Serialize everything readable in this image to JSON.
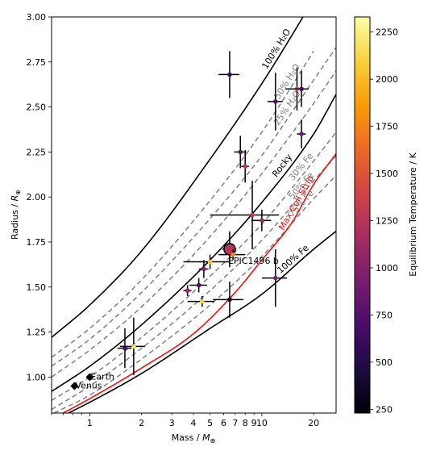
{
  "chart_data": {
    "type": "scatter",
    "xlabel": "Mass / M⊕",
    "ylabel": "Radius / R⊕",
    "x_scale": "log",
    "xlim": [
      0.6,
      27
    ],
    "ylim": [
      0.8,
      3.0
    ],
    "x_ticks": [
      1,
      2,
      3,
      4,
      5,
      6,
      7,
      8,
      9,
      10,
      20
    ],
    "x_tick_labels": [
      "1",
      "2",
      "3",
      "4",
      "5",
      "6",
      "7",
      "8",
      "9",
      "10",
      "20"
    ],
    "y_ticks": [
      1.0,
      1.25,
      1.5,
      1.75,
      2.0,
      2.25,
      2.5,
      2.75,
      3.0
    ],
    "y_tick_labels": [
      "1.00",
      "1.25",
      "1.50",
      "1.75",
      "2.00",
      "2.25",
      "2.50",
      "2.75",
      "3.00"
    ],
    "colorbar": {
      "label": "Equilibrium Temperature / K",
      "range": [
        230,
        2330
      ],
      "ticks": [
        250,
        500,
        750,
        1000,
        1250,
        1500,
        1750,
        2000,
        2250
      ],
      "tick_labels": [
        "250",
        "500",
        "750",
        "1000",
        "1250",
        "1500",
        "1750",
        "2000",
        "2250"
      ],
      "colormap": "inferno",
      "stops": [
        "#000004",
        "#1b0c41",
        "#4a0c6b",
        "#781c6d",
        "#a52c60",
        "#cf4446",
        "#ed6925",
        "#fb9b06",
        "#f7d13d",
        "#fcffa4"
      ]
    },
    "composition_curves": [
      {
        "label": "100% H₂O",
        "style": "solid",
        "color": "#000000",
        "x": [
          0.6,
          1,
          2,
          5,
          10,
          15,
          20
        ],
        "y": [
          1.22,
          1.4,
          1.7,
          2.21,
          2.63,
          2.9,
          3.1
        ]
      },
      {
        "label": "50% H₂O",
        "style": "dashed",
        "color": "#808080",
        "x": [
          0.6,
          1,
          2,
          5,
          10,
          20
        ],
        "y": [
          1.11,
          1.27,
          1.54,
          1.98,
          2.36,
          2.81
        ]
      },
      {
        "label": "25% H₂O",
        "style": "dashed",
        "color": "#808080",
        "x": [
          0.6,
          1,
          2,
          5,
          10,
          20,
          27
        ],
        "y": [
          1.06,
          1.21,
          1.47,
          1.88,
          2.23,
          2.65,
          2.83
        ]
      },
      {
        "label": "",
        "style": "dashed",
        "color": "#808080",
        "x": [
          0.6,
          1,
          2,
          5,
          10,
          20,
          27
        ],
        "y": [
          1.0,
          1.15,
          1.39,
          1.78,
          2.13,
          2.52,
          2.7
        ]
      },
      {
        "label": "Rocky",
        "style": "solid",
        "color": "#000000",
        "x": [
          0.6,
          1,
          2,
          5,
          10,
          20,
          27
        ],
        "y": [
          0.92,
          1.06,
          1.29,
          1.65,
          1.97,
          2.35,
          2.57
        ]
      },
      {
        "label": "30% Fe",
        "style": "dashed",
        "color": "#808080",
        "x": [
          0.6,
          1,
          2,
          5,
          10,
          20,
          27
        ],
        "y": [
          0.87,
          1.0,
          1.22,
          1.56,
          1.85,
          2.2,
          2.36
        ]
      },
      {
        "label": "50% Fe",
        "style": "dashed",
        "color": "#808080",
        "x": [
          0.6,
          1,
          2,
          5,
          10,
          20,
          27
        ],
        "y": [
          0.82,
          0.95,
          1.16,
          1.48,
          1.76,
          2.09,
          2.23
        ]
      },
      {
        "label": "75% Fe",
        "style": "dashed",
        "color": "#808080",
        "x": [
          0.62,
          1,
          2,
          5,
          10,
          20,
          27
        ],
        "y": [
          0.8,
          0.9,
          1.1,
          1.4,
          1.67,
          1.99,
          2.12
        ]
      },
      {
        "label": "Max Coll Strip",
        "style": "solid",
        "color": "#ee1111",
        "x": [
          0.7,
          1,
          2,
          4,
          7,
          10,
          15,
          20,
          27
        ],
        "y": [
          0.8,
          0.88,
          1.05,
          1.24,
          1.47,
          1.65,
          1.86,
          2.07,
          2.24
        ]
      },
      {
        "label": "100% Fe",
        "style": "solid",
        "color": "#000000",
        "x": [
          0.65,
          1,
          2,
          5,
          10,
          20,
          27
        ],
        "y": [
          0.77,
          0.86,
          1.02,
          1.27,
          1.46,
          1.71,
          1.81
        ]
      }
    ],
    "planets": [
      {
        "mass": 6.5,
        "mass_err": 0.9,
        "radius": 2.68,
        "radius_err": 0.13,
        "teq": 600
      },
      {
        "mass": 7.5,
        "mass_err": 0.6,
        "radius": 2.25,
        "radius_err": 0.09,
        "teq": 800
      },
      {
        "mass": 8.0,
        "mass_err": 0.4,
        "radius": 2.17,
        "radius_err": 0.09,
        "teq": 1300
      },
      {
        "mass": 12.0,
        "mass_err": 1.2,
        "radius": 2.53,
        "radius_err": 0.16,
        "teq": 700
      },
      {
        "mass": 16.0,
        "mass_err": 2.3,
        "radius": 2.6,
        "radius_err": 0.12,
        "teq": 1550
      },
      {
        "mass": 17.0,
        "mass_err": 1.7,
        "radius": 2.6,
        "radius_err": 0.1,
        "teq": 650
      },
      {
        "mass": 17.0,
        "mass_err": 1.0,
        "radius": 2.35,
        "radius_err": 0.08,
        "teq": 900
      },
      {
        "mass": 8.8,
        "mass_err": 3.8,
        "radius": 1.9,
        "radius_err": 0.19,
        "teq": 1300
      },
      {
        "mass": 10.0,
        "mass_err": 1.3,
        "radius": 1.87,
        "radius_err": 0.06,
        "teq": 1150
      },
      {
        "mass": 6.5,
        "mass_err": 0.6,
        "radius": 1.71,
        "radius_err": 0.1,
        "teq": 1250,
        "highlight": true,
        "label": "EPIC1496 b"
      },
      {
        "mass": 5.0,
        "mass_err": 1.5,
        "radius": 1.64,
        "radius_err": 0.04,
        "teq": 2000
      },
      {
        "mass": 6.8,
        "mass_err": 1.2,
        "radius": 1.68,
        "radius_err": 0.03,
        "teq": 1750
      },
      {
        "mass": 4.6,
        "mass_err": 0.3,
        "radius": 1.6,
        "radius_err": 0.05,
        "teq": 1000
      },
      {
        "mass": 4.3,
        "mass_err": 0.5,
        "radius": 1.51,
        "radius_err": 0.04,
        "teq": 700
      },
      {
        "mass": 3.7,
        "mass_err": 0.2,
        "radius": 1.48,
        "radius_err": 0.03,
        "teq": 1050
      },
      {
        "mass": 4.5,
        "mass_err": 0.8,
        "radius": 1.42,
        "radius_err": 0.03,
        "teq": 2100
      },
      {
        "mass": 6.5,
        "mass_err": 1.3,
        "radius": 1.43,
        "radius_err": 0.1,
        "teq": 400
      },
      {
        "mass": 12.0,
        "mass_err": 2.0,
        "radius": 1.55,
        "radius_err": 0.16,
        "teq": 1000
      },
      {
        "mass": 1.6,
        "mass_err": 0.15,
        "radius": 1.16,
        "radius_err": 0.11,
        "teq": 700
      },
      {
        "mass": 1.8,
        "mass_err": 0.3,
        "radius": 1.17,
        "radius_err": 0.16,
        "teq": 2150
      }
    ],
    "reference_planets": [
      {
        "name": "Earth",
        "mass": 1.0,
        "radius": 1.0
      },
      {
        "name": "Venus",
        "mass": 0.815,
        "radius": 0.95
      }
    ]
  }
}
